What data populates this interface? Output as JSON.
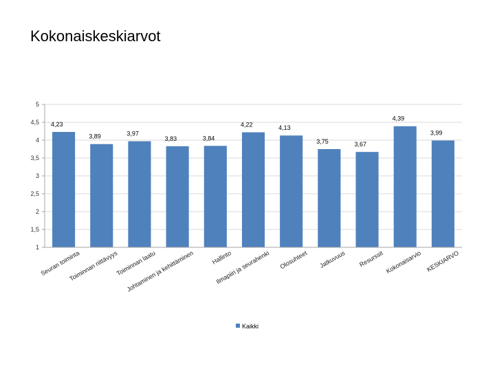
{
  "page": {
    "title": "Kokonaiskeskiarvot"
  },
  "chart_data": {
    "type": "bar",
    "title": "Kokonaiskeskiarvot",
    "xlabel": "",
    "ylabel": "",
    "ylim": [
      1,
      5
    ],
    "yticks": [
      "1",
      "1,5",
      "2",
      "2,5",
      "3",
      "3,5",
      "4",
      "4,5",
      "5"
    ],
    "ytick_values": [
      1,
      1.5,
      2,
      2.5,
      3,
      3.5,
      4,
      4.5,
      5
    ],
    "grid": true,
    "legend_position": "bottom",
    "bar_color": "#4f81bd",
    "categories": [
      "Seuran toiminta",
      "Toiminnan riittävyys",
      "Toiminnan laatu",
      "Johtaminen ja kehittäminen",
      "Hallinto",
      "Ilmapiiri ja seurahenki",
      "Olosuhteet",
      "Jatkuvuus",
      "Resurssit",
      "Kokonaisarvio",
      "KESKIARVO"
    ],
    "series": [
      {
        "name": "Kaikki",
        "values": [
          4.23,
          3.89,
          3.97,
          3.83,
          3.84,
          4.22,
          4.13,
          3.75,
          3.67,
          4.39,
          3.99
        ],
        "labels": [
          "4,23",
          "3,89",
          "3,97",
          "3,83",
          "3,84",
          "4,22",
          "4,13",
          "3,75",
          "3,67",
          "4,39",
          "3,99"
        ]
      }
    ]
  }
}
